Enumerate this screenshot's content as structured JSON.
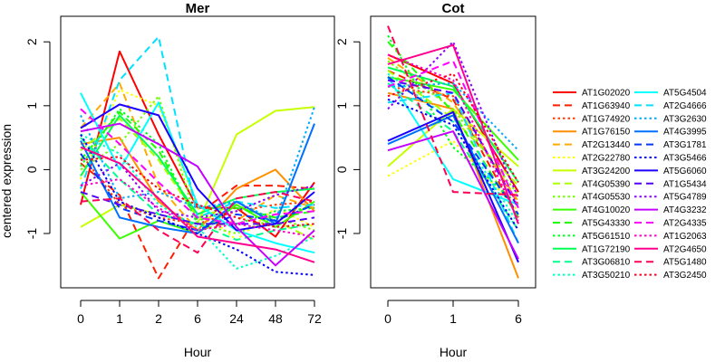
{
  "chart_data": {
    "type": "line",
    "ylabel": "centered expression",
    "legend_position": "right",
    "panels": [
      {
        "title": "Mer",
        "xlabel": "Hour",
        "x_ticks": [
          "0",
          "1",
          "2",
          "6",
          "24",
          "48",
          "72"
        ],
        "y_ticks": [
          -1,
          0,
          1,
          2
        ],
        "ylim": [
          -1.85,
          2.4
        ],
        "series": [
          {
            "name": "AT1G02020",
            "values": [
              -0.55,
              1.85,
              0.55,
              -0.6,
              -0.6,
              -1.05,
              -0.2
            ]
          },
          {
            "name": "AT1G63940",
            "values": [
              0.1,
              -0.4,
              -1.7,
              -0.7,
              -0.25,
              -0.25,
              -0.3
            ]
          },
          {
            "name": "AT1G74920",
            "values": [
              0.25,
              -0.55,
              -0.75,
              -0.85,
              -0.65,
              -0.55,
              -0.5
            ]
          },
          {
            "name": "AT1G76150",
            "values": [
              0.4,
              0.5,
              -0.5,
              -0.95,
              -0.3,
              0.0,
              -0.65
            ]
          },
          {
            "name": "AT2G13440",
            "values": [
              0.65,
              1.35,
              -0.25,
              -0.95,
              -0.8,
              -0.4,
              -0.6
            ]
          },
          {
            "name": "AT2G22780",
            "values": [
              -0.15,
              1.25,
              1.0,
              -0.6,
              -1.1,
              -0.6,
              -0.9
            ]
          },
          {
            "name": "AT3G24200",
            "values": [
              -0.9,
              -0.55,
              -0.7,
              -0.85,
              0.55,
              0.92,
              0.98
            ]
          },
          {
            "name": "AT4G05390",
            "values": [
              0.3,
              0.8,
              0.15,
              -0.75,
              -0.55,
              -0.8,
              -1.1
            ]
          },
          {
            "name": "AT4G05530",
            "values": [
              0.0,
              0.4,
              1.15,
              -0.85,
              -1.0,
              -0.75,
              -0.95
            ]
          },
          {
            "name": "AT4G10020",
            "values": [
              -0.35,
              -1.08,
              -0.8,
              -1.0,
              -0.55,
              -0.9,
              -0.5
            ]
          },
          {
            "name": "AT5G43330",
            "values": [
              0.15,
              0.9,
              0.3,
              -0.8,
              -0.6,
              -0.75,
              -0.65
            ]
          },
          {
            "name": "AT5G61510",
            "values": [
              0.05,
              0.95,
              0.4,
              -0.85,
              -0.85,
              -0.65,
              -0.6
            ]
          },
          {
            "name": "AT1G72190",
            "values": [
              -0.1,
              0.85,
              0.2,
              -0.7,
              -0.45,
              -0.35,
              -0.3
            ]
          },
          {
            "name": "AT3G06810",
            "values": [
              0.5,
              -0.15,
              -0.7,
              -0.85,
              -1.1,
              -0.95,
              -0.85
            ]
          },
          {
            "name": "AT3G50210",
            "values": [
              0.55,
              0.25,
              -0.55,
              -0.9,
              -1.55,
              -1.35,
              -1.05
            ]
          },
          {
            "name": "AT5G4504",
            "values": [
              1.2,
              0.0,
              1.05,
              -0.55,
              -0.95,
              -1.15,
              -1.3
            ]
          },
          {
            "name": "AT2G4666",
            "values": [
              -0.3,
              1.4,
              2.08,
              -0.75,
              -0.5,
              -0.6,
              -0.55
            ]
          },
          {
            "name": "AT3G2630",
            "values": [
              0.85,
              -0.45,
              -0.35,
              -0.6,
              -0.5,
              -0.8,
              0.98
            ]
          },
          {
            "name": "AT4G3995",
            "values": [
              0.45,
              -0.75,
              -0.9,
              -1.0,
              -0.5,
              -0.85,
              0.72
            ]
          },
          {
            "name": "AT3G1781",
            "values": [
              0.25,
              -0.6,
              -0.8,
              -0.95,
              -0.7,
              -0.8,
              -0.55
            ]
          },
          {
            "name": "AT3G5466",
            "values": [
              0.55,
              -0.5,
              -0.75,
              -1.0,
              -1.25,
              -1.6,
              -1.65
            ]
          },
          {
            "name": "AT5G6060",
            "values": [
              0.65,
              1.02,
              0.85,
              -0.3,
              -0.95,
              -0.85,
              -0.35
            ]
          },
          {
            "name": "AT1G5434",
            "values": [
              -0.35,
              -0.55,
              -0.7,
              -0.85,
              -0.85,
              -0.85,
              -0.75
            ]
          },
          {
            "name": "AT5G4789",
            "values": [
              -0.25,
              0.1,
              -0.65,
              -0.75,
              -0.65,
              -0.4,
              -0.25
            ]
          },
          {
            "name": "AT4G3232",
            "values": [
              0.6,
              0.72,
              0.4,
              0.05,
              -0.9,
              -1.5,
              -0.95
            ]
          },
          {
            "name": "AT2G4335",
            "values": [
              0.95,
              0.4,
              -0.2,
              -0.75,
              -0.85,
              -0.7,
              -0.65
            ]
          },
          {
            "name": "AT1G2063",
            "values": [
              -0.25,
              -0.15,
              -0.6,
              -0.95,
              -0.85,
              -0.95,
              -1.05
            ]
          },
          {
            "name": "AT2G4650",
            "values": [
              0.35,
              0.1,
              -0.45,
              -1.05,
              -1.15,
              -1.25,
              -1.45
            ]
          },
          {
            "name": "AT5G1480",
            "values": [
              -0.5,
              -0.45,
              -0.95,
              -1.3,
              -0.45,
              -0.35,
              -0.5
            ]
          },
          {
            "name": "AT3G2450",
            "values": [
              0.15,
              0.2,
              -0.3,
              -0.55,
              -0.75,
              -0.9,
              -0.85
            ]
          }
        ]
      },
      {
        "title": "Cot",
        "xlabel": "Hour",
        "x_ticks": [
          "0",
          "1",
          "6"
        ],
        "y_ticks": [
          -1,
          0,
          1,
          2
        ],
        "ylim": [
          -1.85,
          2.4
        ],
        "series": [
          {
            "name": "AT1G02020",
            "values": [
              1.8,
              1.35,
              -0.35
            ]
          },
          {
            "name": "AT1G63940",
            "values": [
              1.55,
              1.1,
              -0.75
            ]
          },
          {
            "name": "AT1G74920",
            "values": [
              1.3,
              1.15,
              -0.55
            ]
          },
          {
            "name": "AT1G76150",
            "values": [
              1.2,
              0.95,
              -1.7
            ]
          },
          {
            "name": "AT2G13440",
            "values": [
              1.75,
              1.05,
              -0.5
            ]
          },
          {
            "name": "AT2G22780",
            "values": [
              -0.1,
              0.45,
              -0.65
            ]
          },
          {
            "name": "AT3G24200",
            "values": [
              0.05,
              0.95,
              0.05
            ]
          },
          {
            "name": "AT4G05390",
            "values": [
              1.55,
              0.8,
              -0.25
            ]
          },
          {
            "name": "AT4G05530",
            "values": [
              1.7,
              0.95,
              -0.4
            ]
          },
          {
            "name": "AT4G10020",
            "values": [
              1.45,
              1.25,
              0.15
            ]
          },
          {
            "name": "AT5G43330",
            "values": [
              2.0,
              0.9,
              -0.75
            ]
          },
          {
            "name": "AT5G61510",
            "values": [
              2.1,
              0.35,
              -0.55
            ]
          },
          {
            "name": "AT1G72190",
            "values": [
              1.6,
              1.3,
              -0.2
            ]
          },
          {
            "name": "AT3G06810",
            "values": [
              1.35,
              0.6,
              -0.95
            ]
          },
          {
            "name": "AT3G50210",
            "values": [
              1.5,
              0.75,
              -0.85
            ]
          },
          {
            "name": "AT5G4504",
            "values": [
              1.45,
              -0.15,
              -0.55
            ]
          },
          {
            "name": "AT2G4666",
            "values": [
              1.05,
              1.2,
              -1.15
            ]
          },
          {
            "name": "AT3G2630",
            "values": [
              1.3,
              1.35,
              0.3
            ]
          },
          {
            "name": "AT4G3995",
            "values": [
              0.4,
              0.85,
              -1.15
            ]
          },
          {
            "name": "AT3G1781",
            "values": [
              1.45,
              0.75,
              -0.7
            ]
          },
          {
            "name": "AT3G5466",
            "values": [
              1.1,
              0.7,
              -0.95
            ]
          },
          {
            "name": "AT5G6060",
            "values": [
              0.45,
              0.9,
              -1.45
            ]
          },
          {
            "name": "AT1G5434",
            "values": [
              1.4,
              1.2,
              -0.6
            ]
          },
          {
            "name": "AT5G4789",
            "values": [
              0.95,
              2.0,
              -0.45
            ]
          },
          {
            "name": "AT4G3232",
            "values": [
              0.3,
              0.6,
              -1.4
            ]
          },
          {
            "name": "AT2G4335",
            "values": [
              1.3,
              1.7,
              -0.6
            ]
          },
          {
            "name": "AT1G2063",
            "values": [
              1.8,
              1.4,
              -0.8
            ]
          },
          {
            "name": "AT2G4650",
            "values": [
              1.65,
              1.95,
              -0.85
            ]
          },
          {
            "name": "AT5G1480",
            "values": [
              2.25,
              -0.35,
              -0.4
            ]
          },
          {
            "name": "AT3G2450",
            "values": [
              1.15,
              1.5,
              -0.2
            ]
          }
        ]
      }
    ]
  },
  "series_styles": [
    {
      "color": "#FF0000",
      "dash": "solid"
    },
    {
      "color": "#FF1C00",
      "dash": "dashed"
    },
    {
      "color": "#FF3900",
      "dash": "dotted"
    },
    {
      "color": "#FF8E00",
      "dash": "solid"
    },
    {
      "color": "#FFAA00",
      "dash": "dashed"
    },
    {
      "color": "#FFFF00",
      "dash": "dotted"
    },
    {
      "color": "#C6FF00",
      "dash": "solid"
    },
    {
      "color": "#AAFF00",
      "dash": "dashed"
    },
    {
      "color": "#71FF00",
      "dash": "dotted"
    },
    {
      "color": "#39FF00",
      "dash": "solid"
    },
    {
      "color": "#1CFF00",
      "dash": "dashed"
    },
    {
      "color": "#00FF1C",
      "dash": "dotted"
    },
    {
      "color": "#00FF55",
      "dash": "solid"
    },
    {
      "color": "#00FF8E",
      "dash": "dashed"
    },
    {
      "color": "#00FFC6",
      "dash": "dotted"
    },
    {
      "color": "#00FFFF",
      "dash": "solid"
    },
    {
      "color": "#00E2FF",
      "dash": "dashed"
    },
    {
      "color": "#00AAFF",
      "dash": "dotted"
    },
    {
      "color": "#0071FF",
      "dash": "solid"
    },
    {
      "color": "#0039FF",
      "dash": "dashed"
    },
    {
      "color": "#0000FF",
      "dash": "dotted"
    },
    {
      "color": "#1C00FF",
      "dash": "solid"
    },
    {
      "color": "#5500FF",
      "dash": "dashed"
    },
    {
      "color": "#8E00FF",
      "dash": "dotted"
    },
    {
      "color": "#C600FF",
      "dash": "solid"
    },
    {
      "color": "#FF00FF",
      "dash": "dashed"
    },
    {
      "color": "#FF00C6",
      "dash": "dotted"
    },
    {
      "color": "#FF008E",
      "dash": "solid"
    },
    {
      "color": "#FF0055",
      "dash": "dashed"
    },
    {
      "color": "#FF001C",
      "dash": "dotted"
    }
  ]
}
